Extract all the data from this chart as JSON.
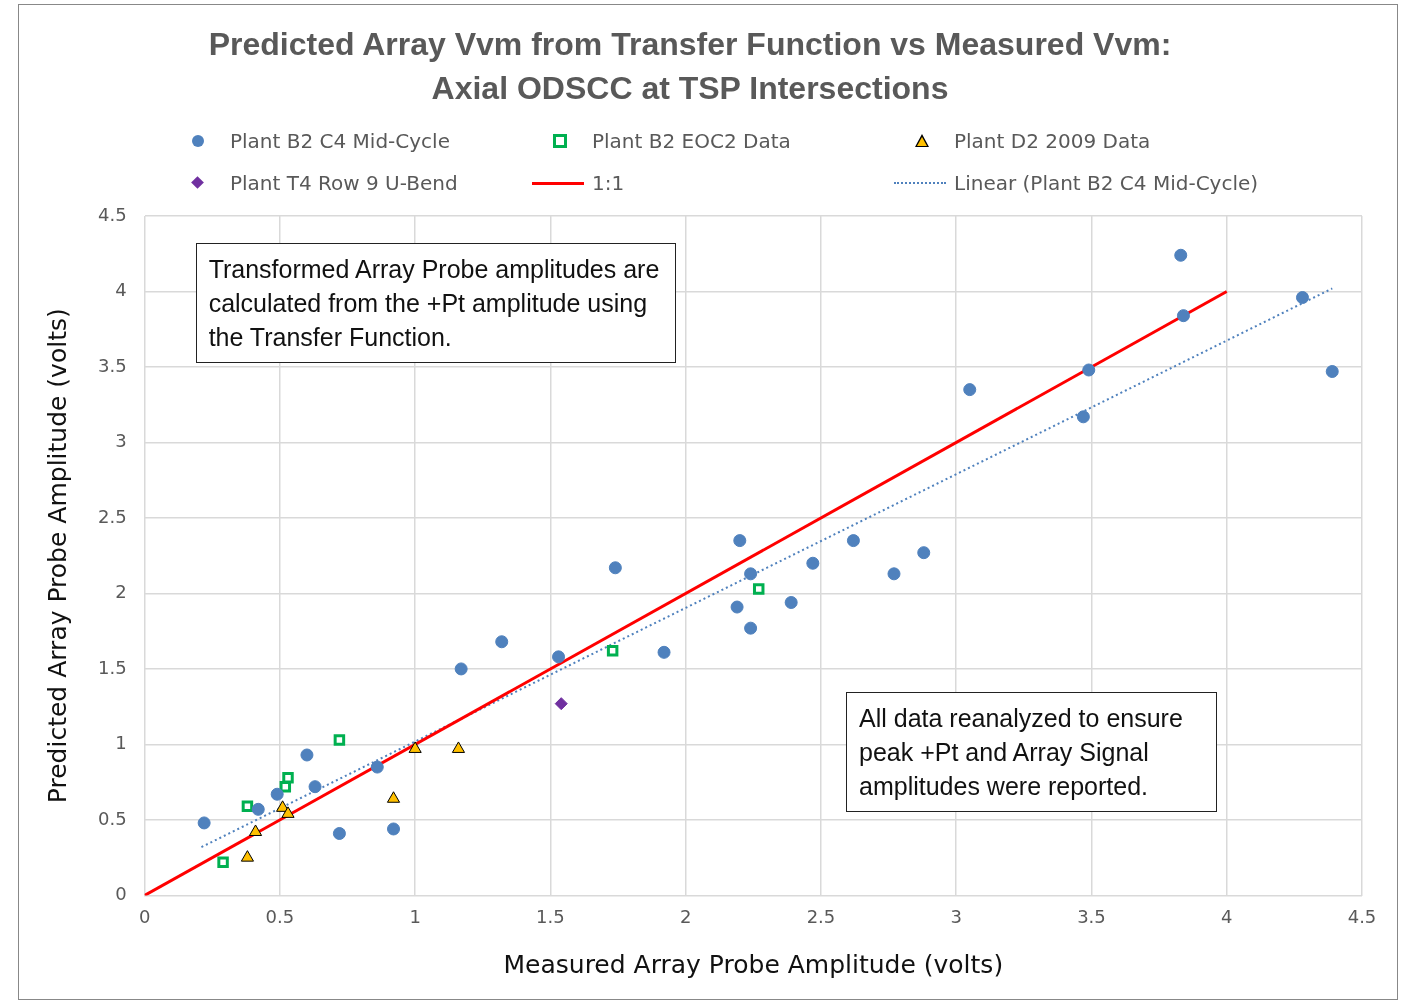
{
  "chart_data": {
    "type": "scatter",
    "title": "Predicted Array Vvm from Transfer Function vs Measured Vvm: Axial ODSCC at TSP Intersections",
    "xlabel": "Measured Array Probe Amplitude (volts)",
    "ylabel": "Predicted Array Probe Amplitude (volts)",
    "xlim": [
      0,
      4.5
    ],
    "xticks": [
      0,
      0.5,
      1,
      1.5,
      2,
      2.5,
      3,
      3.5,
      4,
      4.5
    ],
    "ylim": [
      0,
      4.5
    ],
    "yticks": [
      0,
      0.5,
      1,
      1.5,
      2,
      2.5,
      3,
      3.5,
      4,
      4.5
    ],
    "grid": true,
    "legend": "top",
    "annotations": [
      "Transformed Array Probe amplitudes are calculated from the +Pt amplitude using the Transfer Function.",
      "All data reanalyzed to ensure peak +Pt and Array Signal amplitudes were reported."
    ],
    "series": [
      {
        "name": "Plant B2 C4 Mid-Cycle",
        "type": "scatter",
        "marker": "circle",
        "color": "#4f81bd",
        "x": [
          0.22,
          0.42,
          0.49,
          0.6,
          0.63,
          0.72,
          0.86,
          0.92,
          1.17,
          1.32,
          1.53,
          1.74,
          1.92,
          2.19,
          2.2,
          2.24,
          2.24,
          2.39,
          2.47,
          2.62,
          2.77,
          2.88,
          3.05,
          3.47,
          3.49,
          3.83,
          3.84,
          4.28,
          4.39
        ],
        "values": [
          0.48,
          0.57,
          0.67,
          0.93,
          0.72,
          0.41,
          0.85,
          0.44,
          1.5,
          1.68,
          1.58,
          2.17,
          1.61,
          1.91,
          2.35,
          2.13,
          1.77,
          1.94,
          2.2,
          2.35,
          2.13,
          2.27,
          3.35,
          3.17,
          3.48,
          4.24,
          3.84,
          3.96,
          3.47
        ]
      },
      {
        "name": "Plant B2 EOC2 Data",
        "type": "scatter",
        "marker": "square",
        "color": "#00b050",
        "x": [
          0.29,
          0.38,
          0.52,
          0.53,
          0.72,
          1.73,
          2.27
        ],
        "values": [
          0.22,
          0.59,
          0.72,
          0.78,
          1.03,
          1.62,
          2.03
        ]
      },
      {
        "name": "Plant D2 2009 Data",
        "type": "scatter",
        "marker": "triangle",
        "color": "#ffc000",
        "x": [
          0.38,
          0.41,
          0.51,
          0.53,
          0.92,
          1.0,
          1.16
        ],
        "values": [
          0.25,
          0.42,
          0.58,
          0.54,
          0.64,
          0.97,
          0.97
        ]
      },
      {
        "name": "Plant T4 Row 9 U-Bend",
        "type": "scatter",
        "marker": "diamond",
        "color": "#7030a0",
        "x": [
          1.54
        ],
        "values": [
          1.27
        ]
      },
      {
        "name": "1:1",
        "type": "line",
        "line_style": "solid",
        "marker": "none",
        "color": "#ff0000",
        "x": [
          0,
          4
        ],
        "values": [
          0,
          4
        ]
      },
      {
        "name": "Linear (Plant B2 C4 Mid-Cycle)",
        "type": "line",
        "line_style": "dotted",
        "marker": "none",
        "color": "#4f81bd",
        "x": [
          0.21,
          4.39
        ],
        "values": [
          0.32,
          4.02
        ]
      }
    ]
  }
}
